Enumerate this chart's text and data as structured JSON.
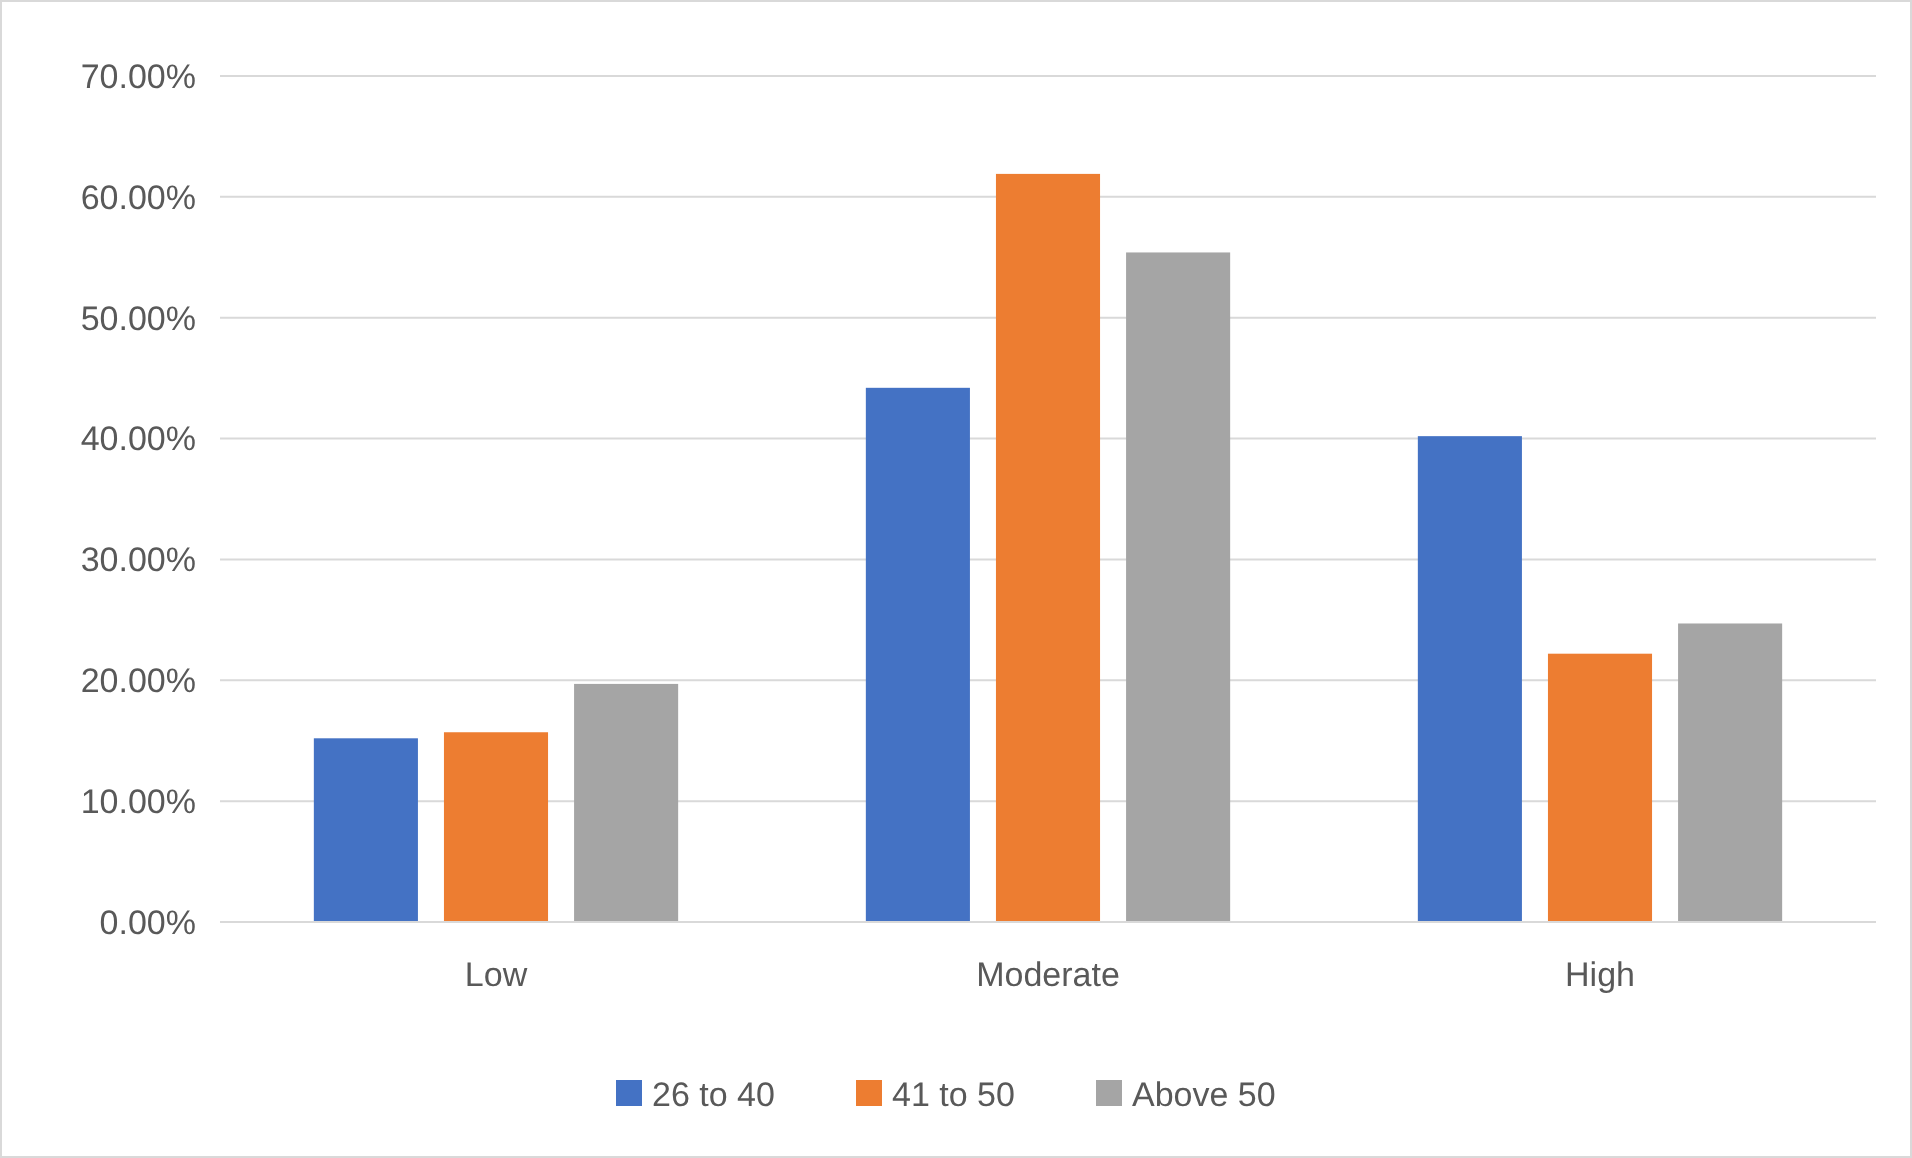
{
  "chart_data": {
    "type": "bar",
    "categories": [
      "Low",
      "Moderate",
      "High"
    ],
    "series": [
      {
        "name": "26 to 40",
        "color": "#4472c4",
        "values": [
          15.2,
          44.2,
          40.2
        ]
      },
      {
        "name": "41 to 50",
        "color": "#ed7d31",
        "values": [
          15.7,
          61.9,
          22.2
        ]
      },
      {
        "name": "Above 50",
        "color": "#a5a5a5",
        "values": [
          19.7,
          55.4,
          24.7
        ]
      }
    ],
    "ylim": [
      0,
      70
    ],
    "yticks": [
      {
        "value": 0,
        "label": "0.00%"
      },
      {
        "value": 10,
        "label": "10.00%"
      },
      {
        "value": 20,
        "label": "20.00%"
      },
      {
        "value": 30,
        "label": "30.00%"
      },
      {
        "value": 40,
        "label": "40.00%"
      },
      {
        "value": 50,
        "label": "50.00%"
      },
      {
        "value": 60,
        "label": "60.00%"
      },
      {
        "value": 70,
        "label": "70.00%"
      }
    ],
    "grid": "y",
    "legend": "bottom"
  }
}
